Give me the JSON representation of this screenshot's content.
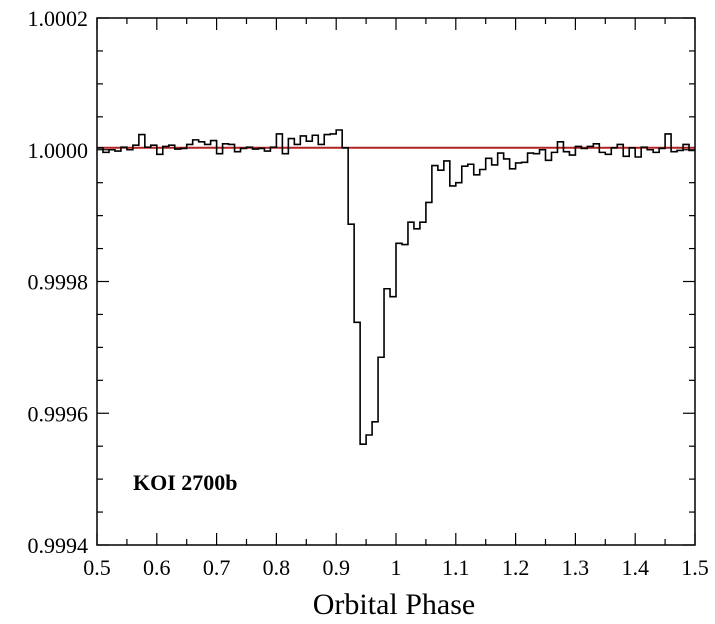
{
  "chart_data": {
    "type": "line",
    "style": "step",
    "title": "",
    "xlabel": "Orbital Phase",
    "ylabel": "",
    "xlim": [
      0.5,
      1.5
    ],
    "ylim": [
      0.9994,
      1.0002
    ],
    "x_ticks": [
      0.5,
      0.6,
      0.7,
      0.8,
      0.9,
      1.0,
      1.1,
      1.2,
      1.3,
      1.4,
      1.5
    ],
    "x_tick_labels": [
      "0.5",
      "0.6",
      "0.7",
      "0.8",
      "0.9",
      "1",
      "1.1",
      "1.2",
      "1.3",
      "1.4",
      "1.5"
    ],
    "y_ticks": [
      0.9994,
      0.9996,
      0.9998,
      1.0,
      1.0002
    ],
    "y_tick_labels": [
      "0.9994",
      "0.9996",
      "0.9998",
      "1.0000",
      "1.0002"
    ],
    "y_minor_step": 5e-05,
    "x_minor_step": 0.05,
    "grid": false,
    "annotation": "KOI 2700b",
    "annotation_location": "lower-left",
    "reference_line": {
      "y": 1.000003,
      "color": "#b22222"
    },
    "series": [
      {
        "color": "#000000",
        "bin_width": 0.01,
        "x": [
          0.5,
          0.51,
          0.52,
          0.53,
          0.54,
          0.55,
          0.56,
          0.57,
          0.58,
          0.59,
          0.6,
          0.61,
          0.62,
          0.63,
          0.64,
          0.65,
          0.66,
          0.67,
          0.68,
          0.69,
          0.7,
          0.71,
          0.72,
          0.73,
          0.74,
          0.75,
          0.76,
          0.77,
          0.78,
          0.79,
          0.8,
          0.81,
          0.82,
          0.83,
          0.84,
          0.85,
          0.86,
          0.87,
          0.88,
          0.89,
          0.9,
          0.91,
          0.92,
          0.93,
          0.94,
          0.95,
          0.96,
          0.97,
          0.98,
          0.99,
          1.0,
          1.01,
          1.02,
          1.03,
          1.04,
          1.05,
          1.06,
          1.07,
          1.08,
          1.09,
          1.1,
          1.11,
          1.12,
          1.13,
          1.14,
          1.15,
          1.16,
          1.17,
          1.18,
          1.19,
          1.2,
          1.21,
          1.22,
          1.23,
          1.24,
          1.25,
          1.26,
          1.27,
          1.28,
          1.29,
          1.3,
          1.31,
          1.32,
          1.33,
          1.34,
          1.35,
          1.36,
          1.37,
          1.38,
          1.39,
          1.4,
          1.41,
          1.42,
          1.43,
          1.44,
          1.45,
          1.46,
          1.47,
          1.48,
          1.49
        ],
        "y": [
          1.000003,
          0.999996,
          1.0,
          0.999998,
          1.000004,
          1.0,
          1.000007,
          1.000023,
          1.000004,
          1.000007,
          0.999993,
          1.000005,
          1.000007,
          1.000001,
          1.000002,
          1.000008,
          1.000015,
          1.000012,
          1.000008,
          1.000014,
          0.999994,
          1.000009,
          1.000008,
          0.999997,
          1.000002,
          1.000004,
          1.000001,
          1.000002,
          0.999998,
          1.000004,
          1.000024,
          0.999994,
          1.000017,
          1.000008,
          1.000021,
          1.000013,
          1.000022,
          1.000008,
          1.000023,
          1.000024,
          1.00003,
          1.000003,
          0.999887,
          0.999738,
          0.999553,
          0.999567,
          0.999587,
          0.999685,
          0.999789,
          0.999777,
          0.999858,
          0.999856,
          0.99989,
          0.99988,
          0.99989,
          0.99992,
          0.999976,
          0.999969,
          0.999983,
          0.999945,
          0.99995,
          0.999975,
          0.999978,
          0.999962,
          0.99997,
          0.999987,
          0.999977,
          0.999995,
          0.999986,
          0.999971,
          0.99998,
          0.999981,
          0.999995,
          0.999994,
          1.0,
          0.999984,
          0.999996,
          1.000012,
          0.999997,
          0.999992,
          1.000005,
          1.000002,
          1.000005,
          1.000009,
          0.999996,
          0.999993,
          1.000003,
          1.000008,
          0.99999,
          1.000003,
          0.999989,
          1.000004,
          1.0,
          0.999996,
          1.000002,
          1.000024,
          0.999997,
          0.999999,
          1.000008,
          0.999999
        ]
      }
    ]
  }
}
